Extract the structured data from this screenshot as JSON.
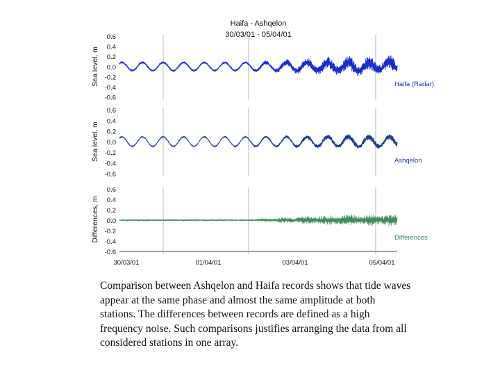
{
  "figure": {
    "title": "Haifa - Ashqelon",
    "subtitle": "30/03/01 - 05/04/01"
  },
  "chart_data": [
    {
      "type": "line",
      "title": "Haifa - Ashqelon",
      "subtitle": "30/03/01 - 05/04/01",
      "ylabel": "Sea level, m",
      "series": [
        {
          "name": "Haifa (Radar)",
          "color": "#1a2ecc"
        }
      ],
      "ylim": [
        -0.6,
        0.6
      ],
      "yticks": [
        "0.6",
        "0.4",
        "0.2",
        "0.0",
        "-0.2",
        "-0.4",
        "-0.6"
      ],
      "x_range": [
        "30/03/01",
        "05/04/01"
      ],
      "tide_amplitude": 0.08,
      "noise_amplitude_start": 0.04,
      "noise_amplitude_peak": 0.27,
      "grid": "vertical"
    },
    {
      "type": "line",
      "ylabel": "Sea level, m",
      "series": [
        {
          "name": "Ashqelon",
          "color": "#1c3c90"
        }
      ],
      "ylim": [
        -0.6,
        0.6
      ],
      "yticks": [
        "0.6",
        "0.4",
        "0.2",
        "0.0",
        "-0.2",
        "-0.4",
        "-0.6"
      ],
      "x_range": [
        "30/03/01",
        "05/04/01"
      ],
      "tide_amplitude": 0.09,
      "noise_amplitude_start": 0.02,
      "noise_amplitude_peak": 0.12,
      "grid": "vertical"
    },
    {
      "type": "line",
      "ylabel": "Differences, m",
      "series": [
        {
          "name": "Differences",
          "color": "#3f8a5a"
        }
      ],
      "ylim": [
        -0.6,
        0.6
      ],
      "yticks": [
        "0.6",
        "0.4",
        "0.2",
        "0.0",
        "-0.2",
        "-0.4",
        "-0.6"
      ],
      "xticks": [
        "30/03/01",
        "01/04/01",
        "03/04/01",
        "05/04/01"
      ],
      "noise_amplitude_start": 0.03,
      "noise_amplitude_peak": 0.22,
      "grid": "vertical"
    }
  ],
  "caption": "Comparison between Ashqelon and Haifa records shows that tide waves appear at the same phase and almost the same amplitude at both stations. The differences between records are defined as a high frequency noise. Such comparisons justifies arranging the data from all considered stations in one array."
}
